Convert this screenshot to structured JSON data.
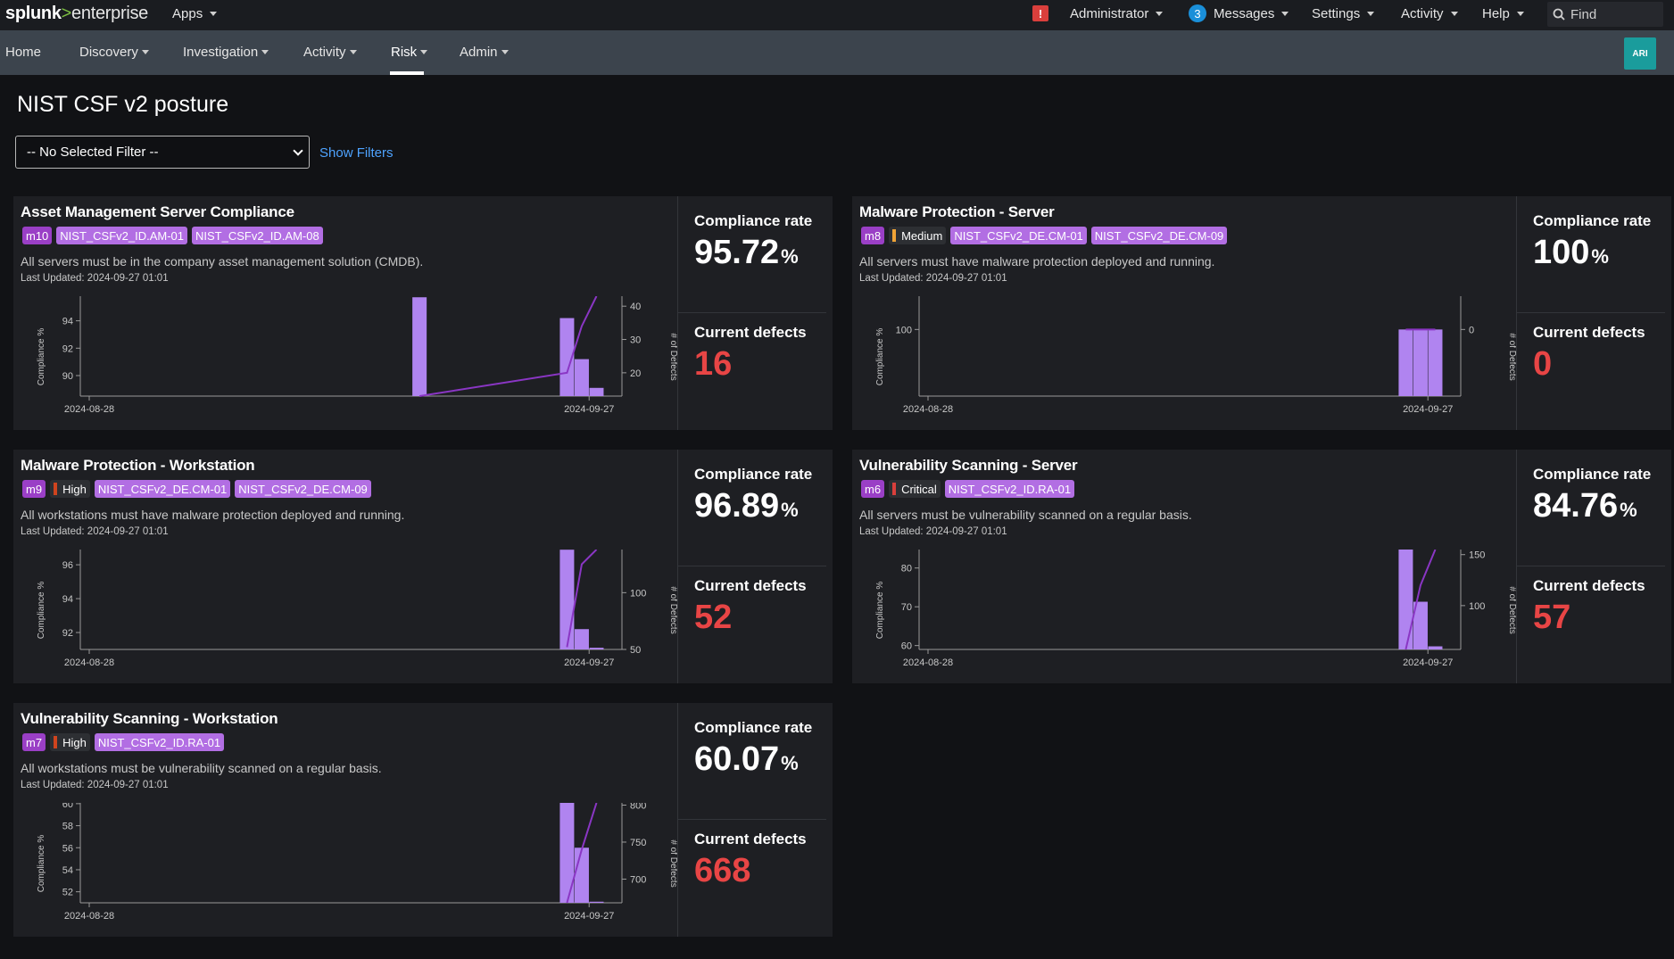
{
  "app": {
    "logo_brand": "splunk",
    "logo_gt": ">",
    "logo_product": "enterprise"
  },
  "topbar": {
    "apps": "Apps",
    "administrator": "Administrator",
    "messages_count": "3",
    "messages": "Messages",
    "settings": "Settings",
    "activity": "Activity",
    "help": "Help",
    "find_placeholder": "Find",
    "alert_icon": "!"
  },
  "nav": {
    "items": [
      "Home",
      "Discovery",
      "Investigation",
      "Activity",
      "Risk",
      "Admin"
    ],
    "active": "Risk",
    "avatar": "ARI"
  },
  "page": {
    "title": "NIST CSF v2 posture",
    "filter_value": "-- No Selected Filter --",
    "show_filters": "Show Filters"
  },
  "labels": {
    "compliance_rate": "Compliance rate",
    "current_defects": "Current defects",
    "y_left": "Compliance %",
    "y_right": "# of Defects",
    "x_start": "2024-08-28",
    "x_end": "2024-09-27",
    "percent": "%"
  },
  "colors": {
    "bar": "#b084f0",
    "line": "#8a36c4",
    "defects": "#e84545",
    "high": "#d0441e",
    "medium": "#f0a336",
    "critical": "#d93f3c"
  },
  "panels": [
    {
      "title": "Asset Management Server Compliance",
      "metric": "m10",
      "severity": null,
      "tags": [
        "NIST_CSFv2_ID.AM-01",
        "NIST_CSFv2_ID.AM-08"
      ],
      "description": "All servers must be in the company asset management solution (CMDB).",
      "updated": "Last Updated: 2024-09-27 01:01",
      "compliance": "95.72",
      "defects": "16"
    },
    {
      "title": "Malware Protection - Server",
      "metric": "m8",
      "severity": "Medium",
      "tags": [
        "NIST_CSFv2_DE.CM-01",
        "NIST_CSFv2_DE.CM-09"
      ],
      "description": "All servers must have malware protection deployed and running.",
      "updated": "Last Updated: 2024-09-27 01:01",
      "compliance": "100",
      "defects": "0"
    },
    {
      "title": "Malware Protection - Workstation",
      "metric": "m9",
      "severity": "High",
      "tags": [
        "NIST_CSFv2_DE.CM-01",
        "NIST_CSFv2_DE.CM-09"
      ],
      "description": "All workstations must have malware protection deployed and running.",
      "updated": "Last Updated: 2024-09-27 01:01",
      "compliance": "96.89",
      "defects": "52"
    },
    {
      "title": "Vulnerability Scanning - Server",
      "metric": "m6",
      "severity": "Critical",
      "tags": [
        "NIST_CSFv2_ID.RA-01"
      ],
      "description": "All servers must be vulnerability scanned on a regular basis.",
      "updated": "Last Updated: 2024-09-27 01:01",
      "compliance": "84.76",
      "defects": "57"
    },
    {
      "title": "Vulnerability Scanning - Workstation",
      "metric": "m7",
      "severity": "High",
      "tags": [
        "NIST_CSFv2_ID.RA-01"
      ],
      "description": "All workstations must be vulnerability scanned on a regular basis.",
      "updated": "Last Updated: 2024-09-27 01:01",
      "compliance": "60.07",
      "defects": "668"
    }
  ],
  "chart_data": [
    {
      "type": "bar",
      "title": "Asset Management Server Compliance",
      "xlabel": "",
      "ylabel": "Compliance %",
      "y2label": "# of Defects",
      "x_ticks": [
        "2024-08-28",
        "2024-09-27"
      ],
      "yticks": [
        90,
        92,
        94
      ],
      "ylim": [
        88.5,
        95.8
      ],
      "y2ticks": [
        20,
        30,
        40
      ],
      "y2lim": [
        13,
        43
      ],
      "bars": [
        {
          "day": 23,
          "value": 95.72
        },
        {
          "day": 33,
          "value": 94.2
        },
        {
          "day": 34,
          "value": 91.2
        },
        {
          "day": 35,
          "value": 89.1
        }
      ],
      "line": [
        {
          "day": 23,
          "value": 13
        },
        {
          "day": 33,
          "value": 20
        },
        {
          "day": 34,
          "value": 34
        },
        {
          "day": 35,
          "value": 43
        }
      ]
    },
    {
      "type": "bar",
      "title": "Malware Protection - Server",
      "xlabel": "",
      "ylabel": "Compliance %",
      "y2label": "# of Defects",
      "x_ticks": [
        "2024-08-28",
        "2024-09-27"
      ],
      "yticks": [
        100
      ],
      "ylim": [
        97,
        101.5
      ],
      "y2ticks": [
        0
      ],
      "y2lim": [
        -3,
        1.5
      ],
      "bars": [
        {
          "day": 33,
          "value": 100
        },
        {
          "day": 34,
          "value": 100
        },
        {
          "day": 35,
          "value": 100
        }
      ],
      "line": [
        {
          "day": 33,
          "value": 0
        },
        {
          "day": 34,
          "value": 0
        },
        {
          "day": 35,
          "value": 0
        }
      ]
    },
    {
      "type": "bar",
      "title": "Malware Protection - Workstation",
      "xlabel": "",
      "ylabel": "Compliance %",
      "y2label": "# of Defects",
      "x_ticks": [
        "2024-08-28",
        "2024-09-27"
      ],
      "yticks": [
        92,
        94,
        96
      ],
      "ylim": [
        91,
        96.9
      ],
      "y2ticks": [
        50,
        100
      ],
      "y2lim": [
        50,
        138
      ],
      "bars": [
        {
          "day": 33,
          "value": 96.89
        },
        {
          "day": 34,
          "value": 92.2
        },
        {
          "day": 35,
          "value": 91.1
        }
      ],
      "line": [
        {
          "day": 33,
          "value": 52
        },
        {
          "day": 34,
          "value": 125
        },
        {
          "day": 35,
          "value": 138
        }
      ]
    },
    {
      "type": "bar",
      "title": "Vulnerability Scanning - Server",
      "xlabel": "",
      "ylabel": "Compliance %",
      "y2label": "# of Defects",
      "x_ticks": [
        "2024-08-28",
        "2024-09-27"
      ],
      "yticks": [
        60,
        70,
        80
      ],
      "ylim": [
        59,
        84.76
      ],
      "y2ticks": [
        100,
        150
      ],
      "y2lim": [
        57,
        155
      ],
      "bars": [
        {
          "day": 33,
          "value": 84.76
        },
        {
          "day": 34,
          "value": 71.3
        },
        {
          "day": 35,
          "value": 59.8
        }
      ],
      "line": [
        {
          "day": 33,
          "value": 57
        },
        {
          "day": 34,
          "value": 120
        },
        {
          "day": 35,
          "value": 155
        }
      ]
    },
    {
      "type": "bar",
      "title": "Vulnerability Scanning - Workstation",
      "xlabel": "",
      "ylabel": "Compliance %",
      "y2label": "# of Defects",
      "x_ticks": [
        "2024-08-28",
        "2024-09-27"
      ],
      "yticks": [
        52,
        54,
        56,
        58,
        60
      ],
      "ylim": [
        51,
        60.07
      ],
      "y2ticks": [
        700,
        750,
        800
      ],
      "y2lim": [
        668,
        803
      ],
      "bars": [
        {
          "day": 33,
          "value": 60.07
        },
        {
          "day": 34,
          "value": 56.0
        },
        {
          "day": 35,
          "value": 51.1
        }
      ],
      "line": [
        {
          "day": 33,
          "value": 668
        },
        {
          "day": 34,
          "value": 740
        },
        {
          "day": 35,
          "value": 803
        }
      ]
    }
  ]
}
